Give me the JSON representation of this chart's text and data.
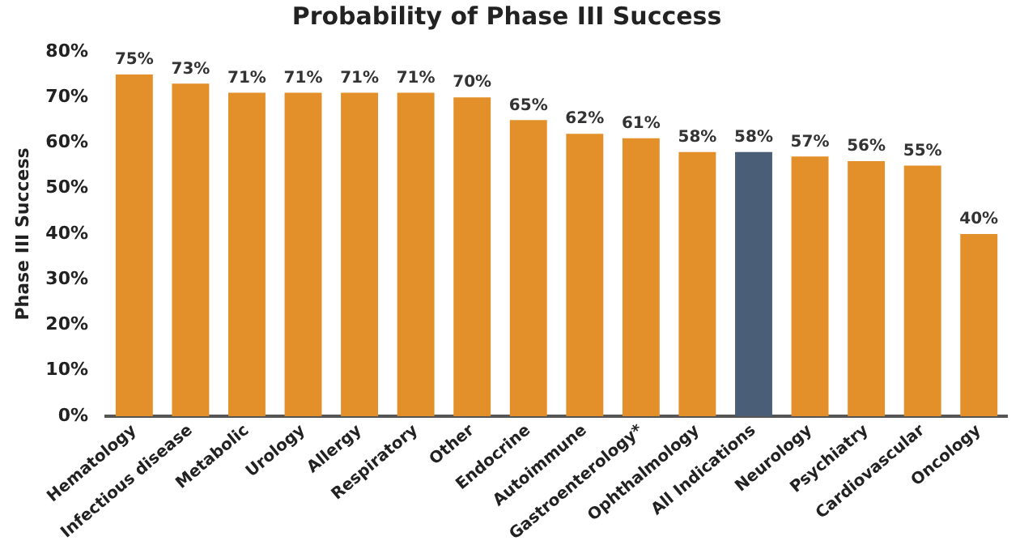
{
  "chart_data": {
    "type": "bar",
    "title": "Probability of Phase III Success",
    "ylabel": "Phase III Success",
    "categories": [
      "Hematology",
      "Infectious disease",
      "Metabolic",
      "Urology",
      "Allergy",
      "Respiratory",
      "Other",
      "Endocrine",
      "Autoimmune",
      "Gastroenterology*",
      "Ophthalmology",
      "All Indications",
      "Neurology",
      "Psychiatry",
      "Cardiovascular",
      "Oncology"
    ],
    "values": [
      75,
      73,
      71,
      71,
      71,
      71,
      70,
      65,
      62,
      61,
      58,
      58,
      57,
      56,
      55,
      40
    ],
    "colors": [
      "#e3902a",
      "#e3902a",
      "#e3902a",
      "#e3902a",
      "#e3902a",
      "#e3902a",
      "#e3902a",
      "#e3902a",
      "#e3902a",
      "#e3902a",
      "#e3902a",
      "#4b5e78",
      "#e3902a",
      "#e3902a",
      "#e3902a",
      "#e3902a"
    ],
    "value_labels": [
      "75%",
      "73%",
      "71%",
      "71%",
      "71%",
      "71%",
      "70%",
      "65%",
      "62%",
      "61%",
      "58%",
      "58%",
      "57%",
      "56%",
      "55%",
      "40%"
    ],
    "ylim": [
      0,
      80
    ],
    "yticks": [
      {
        "value": 0,
        "label": "0%"
      },
      {
        "value": 10,
        "label": "10%"
      },
      {
        "value": 20,
        "label": "20%"
      },
      {
        "value": 30,
        "label": "30%"
      },
      {
        "value": 40,
        "label": "40%"
      },
      {
        "value": 50,
        "label": "50%"
      },
      {
        "value": 60,
        "label": "60%"
      },
      {
        "value": 70,
        "label": "70%"
      },
      {
        "value": 80,
        "label": "80%"
      }
    ],
    "grid": false,
    "legend": false
  }
}
